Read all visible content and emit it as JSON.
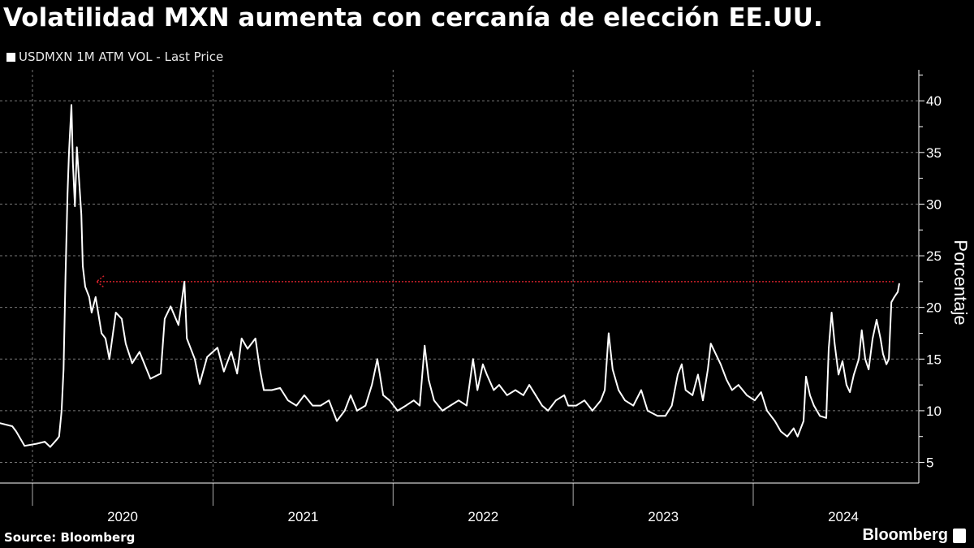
{
  "title": "Volatilidad MXN aumenta con cercanía de elección EE.UU.",
  "source": "Source: Bloomberg",
  "logo": "Bloomberg",
  "colors": {
    "background": "#000000",
    "line": "#ffffff",
    "reference": "#d0202a",
    "grid": "#777777"
  },
  "chart_data": {
    "type": "line",
    "legend": {
      "entries": [
        "USDMXN 1M ATM VOL - Last Price"
      ],
      "placement": "top-left"
    },
    "ylabel": "Porcentaje",
    "xlabel": "",
    "ylim": [
      3,
      43
    ],
    "yticks": [
      5,
      10,
      15,
      20,
      25,
      30,
      35,
      40
    ],
    "xlim": [
      "2019-10-27",
      "2024-11-15"
    ],
    "xticks": [
      "2020",
      "2021",
      "2022",
      "2023",
      "2024"
    ],
    "grid": true,
    "y_axis_side": "right",
    "reference_line": {
      "value": 22.5,
      "from": "2020-05-10",
      "to": "2024-10-13",
      "style": "dotted",
      "arrow": "left"
    },
    "series": [
      {
        "name": "USDMXN 1M ATM VOL - Last Price",
        "points": [
          [
            "2019-10-27",
            8.8
          ],
          [
            "2019-11-21",
            8.5
          ],
          [
            "2019-11-29",
            8.0
          ],
          [
            "2019-12-16",
            6.6
          ],
          [
            "2020-01-09",
            6.8
          ],
          [
            "2020-01-26",
            7.0
          ],
          [
            "2020-02-06",
            6.5
          ],
          [
            "2020-02-19",
            7.2
          ],
          [
            "2020-02-24",
            7.5
          ],
          [
            "2020-02-29",
            10.0
          ],
          [
            "2020-03-04",
            14.0
          ],
          [
            "2020-03-08",
            23.0
          ],
          [
            "2020-03-12",
            31.0
          ],
          [
            "2020-03-15",
            35.0
          ],
          [
            "2020-03-20",
            39.6
          ],
          [
            "2020-03-23",
            34.0
          ],
          [
            "2020-03-27",
            29.8
          ],
          [
            "2020-03-31",
            35.5
          ],
          [
            "2020-04-05",
            32.0
          ],
          [
            "2020-04-09",
            29.0
          ],
          [
            "2020-04-12",
            24.0
          ],
          [
            "2020-04-17",
            22.0
          ],
          [
            "2020-04-25",
            21.0
          ],
          [
            "2020-04-30",
            19.5
          ],
          [
            "2020-05-08",
            21.0
          ],
          [
            "2020-05-20",
            17.5
          ],
          [
            "2020-05-28",
            17.0
          ],
          [
            "2020-06-05",
            15.0
          ],
          [
            "2020-06-18",
            19.5
          ],
          [
            "2020-06-30",
            18.9
          ],
          [
            "2020-07-08",
            16.5
          ],
          [
            "2020-07-21",
            14.6
          ],
          [
            "2020-08-05",
            15.7
          ],
          [
            "2020-08-27",
            13.1
          ],
          [
            "2020-09-17",
            13.6
          ],
          [
            "2020-09-25",
            18.9
          ],
          [
            "2020-10-07",
            20.1
          ],
          [
            "2020-10-23",
            18.3
          ],
          [
            "2020-11-04",
            22.5
          ],
          [
            "2020-11-09",
            17.0
          ],
          [
            "2020-11-25",
            15.0
          ],
          [
            "2020-12-05",
            12.6
          ],
          [
            "2020-12-20",
            15.2
          ],
          [
            "2021-01-10",
            16.1
          ],
          [
            "2021-01-23",
            13.8
          ],
          [
            "2021-02-07",
            15.7
          ],
          [
            "2021-02-19",
            13.6
          ],
          [
            "2021-02-28",
            17.0
          ],
          [
            "2021-03-12",
            16.0
          ],
          [
            "2021-03-28",
            17.0
          ],
          [
            "2021-04-06",
            14.0
          ],
          [
            "2021-04-14",
            12.0
          ],
          [
            "2021-04-30",
            12.0
          ],
          [
            "2021-05-17",
            12.2
          ],
          [
            "2021-06-02",
            11.0
          ],
          [
            "2021-06-19",
            10.5
          ],
          [
            "2021-07-05",
            11.5
          ],
          [
            "2021-07-22",
            10.5
          ],
          [
            "2021-08-07",
            10.5
          ],
          [
            "2021-08-24",
            11.0
          ],
          [
            "2021-09-09",
            9.0
          ],
          [
            "2021-09-25",
            10.0
          ],
          [
            "2021-10-07",
            11.5
          ],
          [
            "2021-10-20",
            10.0
          ],
          [
            "2021-11-06",
            10.5
          ],
          [
            "2021-11-19",
            12.5
          ],
          [
            "2021-11-30",
            15.0
          ],
          [
            "2021-12-12",
            11.5
          ],
          [
            "2021-12-25",
            11.0
          ],
          [
            "2022-01-10",
            10.0
          ],
          [
            "2022-01-27",
            10.5
          ],
          [
            "2022-02-12",
            11.0
          ],
          [
            "2022-02-24",
            10.5
          ],
          [
            "2022-03-06",
            16.3
          ],
          [
            "2022-03-14",
            13.0
          ],
          [
            "2022-03-25",
            11.0
          ],
          [
            "2022-04-11",
            10.0
          ],
          [
            "2022-04-27",
            10.5
          ],
          [
            "2022-05-14",
            11.0
          ],
          [
            "2022-05-30",
            10.5
          ],
          [
            "2022-06-12",
            15.0
          ],
          [
            "2022-06-21",
            12.0
          ],
          [
            "2022-07-02",
            14.5
          ],
          [
            "2022-07-10",
            13.5
          ],
          [
            "2022-07-24",
            12.0
          ],
          [
            "2022-08-04",
            12.5
          ],
          [
            "2022-08-20",
            11.5
          ],
          [
            "2022-09-06",
            12.0
          ],
          [
            "2022-09-22",
            11.5
          ],
          [
            "2022-10-04",
            12.5
          ],
          [
            "2022-10-17",
            11.5
          ],
          [
            "2022-10-30",
            10.5
          ],
          [
            "2022-11-11",
            10.0
          ],
          [
            "2022-11-27",
            11.0
          ],
          [
            "2022-12-14",
            11.5
          ],
          [
            "2022-12-22",
            10.5
          ],
          [
            "2023-01-07",
            10.5
          ],
          [
            "2023-01-24",
            11.0
          ],
          [
            "2023-02-09",
            10.0
          ],
          [
            "2023-02-26",
            11.0
          ],
          [
            "2023-03-06",
            12.0
          ],
          [
            "2023-03-14",
            17.5
          ],
          [
            "2023-03-22",
            14.0
          ],
          [
            "2023-04-03",
            12.0
          ],
          [
            "2023-04-16",
            11.0
          ],
          [
            "2023-05-03",
            10.5
          ],
          [
            "2023-05-19",
            12.0
          ],
          [
            "2023-06-01",
            10.0
          ],
          [
            "2023-06-21",
            9.5
          ],
          [
            "2023-07-07",
            9.5
          ],
          [
            "2023-07-20",
            10.5
          ],
          [
            "2023-08-01",
            13.5
          ],
          [
            "2023-08-09",
            14.5
          ],
          [
            "2023-08-17",
            12.0
          ],
          [
            "2023-08-31",
            11.5
          ],
          [
            "2023-09-11",
            13.5
          ],
          [
            "2023-09-21",
            11.0
          ],
          [
            "2023-10-01",
            14.0
          ],
          [
            "2023-10-07",
            16.5
          ],
          [
            "2023-10-17",
            15.5
          ],
          [
            "2023-10-27",
            14.5
          ],
          [
            "2023-11-08",
            13.0
          ],
          [
            "2023-11-19",
            12.0
          ],
          [
            "2023-12-02",
            12.5
          ],
          [
            "2023-12-19",
            11.5
          ],
          [
            "2024-01-04",
            11.0
          ],
          [
            "2024-01-17",
            11.8
          ],
          [
            "2024-01-29",
            10.0
          ],
          [
            "2024-02-14",
            9.0
          ],
          [
            "2024-02-26",
            8.0
          ],
          [
            "2024-03-10",
            7.5
          ],
          [
            "2024-03-23",
            8.3
          ],
          [
            "2024-03-31",
            7.5
          ],
          [
            "2024-04-12",
            9.0
          ],
          [
            "2024-04-17",
            13.3
          ],
          [
            "2024-04-25",
            11.5
          ],
          [
            "2024-05-03",
            10.5
          ],
          [
            "2024-05-15",
            9.5
          ],
          [
            "2024-05-28",
            9.3
          ],
          [
            "2024-06-02",
            16.0
          ],
          [
            "2024-06-08",
            19.5
          ],
          [
            "2024-06-14",
            16.5
          ],
          [
            "2024-06-22",
            13.5
          ],
          [
            "2024-06-30",
            14.8
          ],
          [
            "2024-07-08",
            12.5
          ],
          [
            "2024-07-15",
            11.8
          ],
          [
            "2024-07-23",
            13.5
          ],
          [
            "2024-08-02",
            15.0
          ],
          [
            "2024-08-08",
            17.8
          ],
          [
            "2024-08-15",
            15.0
          ],
          [
            "2024-08-22",
            14.0
          ],
          [
            "2024-08-30",
            17.0
          ],
          [
            "2024-09-07",
            18.8
          ],
          [
            "2024-09-15",
            17.0
          ],
          [
            "2024-09-20",
            15.5
          ],
          [
            "2024-09-27",
            14.5
          ],
          [
            "2024-10-02",
            15.0
          ],
          [
            "2024-10-07",
            20.5
          ],
          [
            "2024-10-13",
            21.0
          ],
          [
            "2024-10-20",
            21.5
          ],
          [
            "2024-10-23",
            22.3
          ]
        ]
      }
    ]
  }
}
